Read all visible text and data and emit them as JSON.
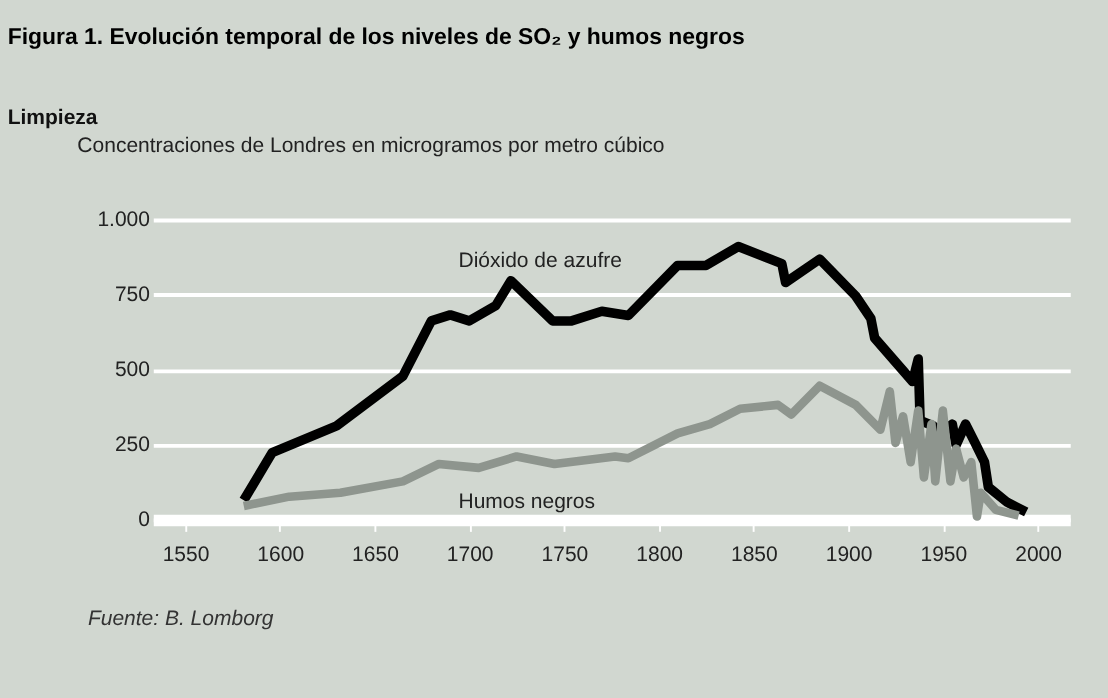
{
  "chart_data": {
    "type": "line",
    "title": "Figura 1. Evolución temporal de los niveles de SO₂ y humos negros",
    "subtitle": "Limpieza",
    "ylabel": "Concentraciones de Londres en microgramos por metro cúbico",
    "series": [
      {
        "name": "Dióxido de azufre",
        "color": "#000000",
        "x": [
          1581,
          1596,
          1630,
          1665,
          1680,
          1690,
          1700,
          1714,
          1722,
          1744,
          1754,
          1770,
          1784,
          1810,
          1825,
          1842,
          1865,
          1867,
          1885,
          1904,
          1912,
          1914,
          1934,
          1937,
          1938,
          1945,
          1948,
          1955,
          1957,
          1962,
          1967,
          1972,
          1974,
          1984,
          1994
        ],
        "values": [
          64,
          223,
          312,
          478,
          662,
          682,
          662,
          713,
          796,
          662,
          662,
          694,
          680,
          847,
          847,
          910,
          853,
          790,
          868,
          745,
          670,
          605,
          460,
          535,
          330,
          312,
          287,
          318,
          248,
          318,
          255,
          191,
          108,
          57,
          25
        ]
      },
      {
        "name": "Humos negros",
        "color": "#8e958e",
        "x": [
          1581,
          1605,
          1632,
          1665,
          1684,
          1705,
          1725,
          1745,
          1777,
          1784,
          1810,
          1827,
          1843,
          1863,
          1870,
          1885,
          1904,
          1917,
          1922,
          1925,
          1929,
          1933,
          1937,
          1940,
          1944,
          1946,
          1950,
          1954,
          1957,
          1961,
          1965,
          1968,
          1970,
          1978,
          1990
        ],
        "values": [
          45,
          76,
          89,
          127,
          185,
          172,
          210,
          185,
          210,
          204,
          287,
          318,
          369,
          382,
          350,
          446,
          382,
          299,
          427,
          255,
          344,
          191,
          363,
          140,
          318,
          127,
          363,
          127,
          236,
          140,
          191,
          10,
          89,
          32,
          13
        ]
      }
    ],
    "xlim": [
      1533,
      2017
    ],
    "xticks": [
      1550,
      1600,
      1650,
      1700,
      1750,
      1800,
      1850,
      1900,
      1950,
      2000
    ],
    "ylim": [
      0,
      1000
    ],
    "yticks": [
      0,
      250,
      500,
      750,
      {
        "value": 1000,
        "label": "1.000"
      }
    ],
    "grid": "y",
    "line_style": "solid",
    "marker": "none",
    "annotations": [
      "Fuente: B. Lomborg"
    ]
  }
}
